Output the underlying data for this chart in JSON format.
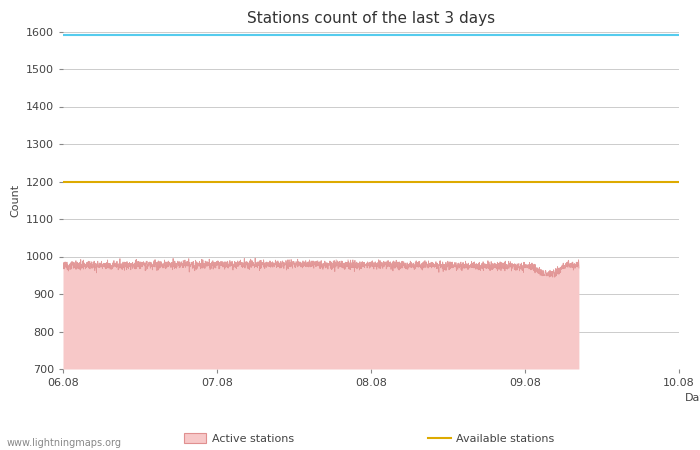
{
  "title": "Stations count of the last 3 days",
  "xlabel": "Day",
  "ylabel": "Count",
  "ylim": [
    700,
    1600
  ],
  "yticks": [
    700,
    800,
    900,
    1000,
    1100,
    1200,
    1300,
    1400,
    1500,
    1600
  ],
  "x_tick_labels": [
    "06.08",
    "07.08",
    "08.08",
    "09.08",
    "10.08"
  ],
  "highest_count": 1590,
  "available_stations": 1200,
  "active_stations_mean": 975,
  "active_fill_color": "#f7c8c8",
  "active_line_color": "#e09090",
  "highest_line_color": "#55ccee",
  "available_line_color": "#ddaa00",
  "bg_color": "#ffffff",
  "grid_color": "#cccccc",
  "watermark": "www.lightningmaps.org",
  "title_fontsize": 11,
  "label_fontsize": 8,
  "tick_fontsize": 8
}
